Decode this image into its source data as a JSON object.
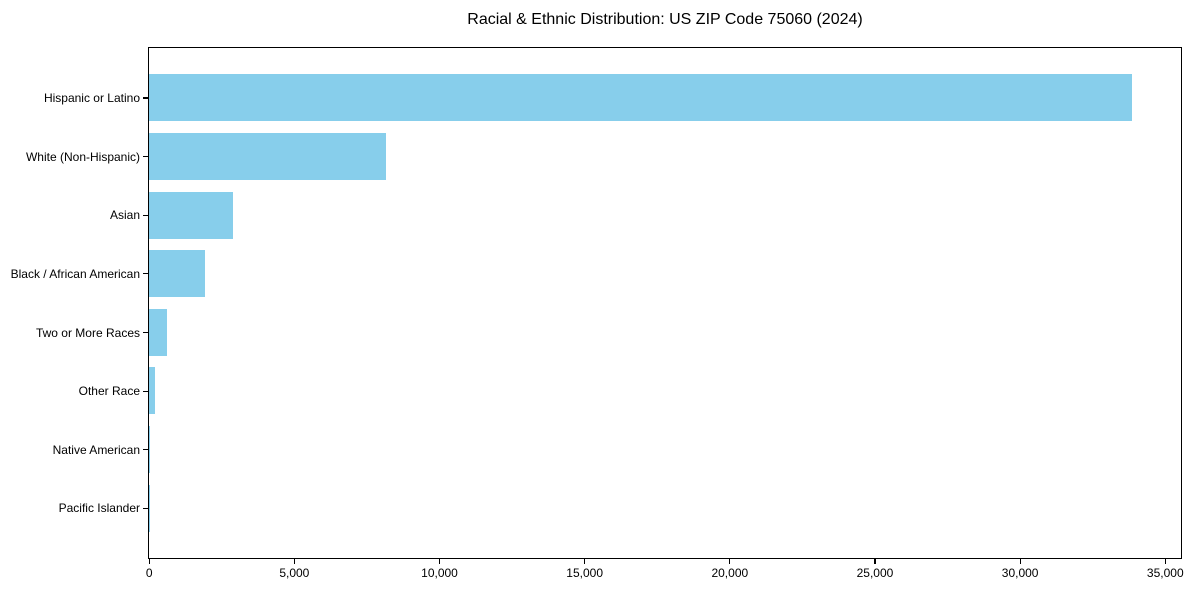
{
  "figure": {
    "title": "Racial & Ethnic Distribution: US ZIP Code 75060 (2024)"
  },
  "chart_data": {
    "type": "bar",
    "orientation": "horizontal",
    "title": "Racial & Ethnic Distribution: US ZIP Code 75060 (2024)",
    "categories": [
      "Hispanic or Latino",
      "White (Non-Hispanic)",
      "Asian",
      "Black / African American",
      "Two or More Races",
      "Other Race",
      "Native American",
      "Pacific Islander"
    ],
    "values": [
      33850,
      8160,
      2910,
      1915,
      610,
      200,
      40,
      15
    ],
    "bar_color": "#87CEEB",
    "xlabel": "",
    "ylabel": "",
    "xlim": [
      0,
      35548
    ],
    "xticks": [
      0,
      5000,
      10000,
      15000,
      20000,
      25000,
      30000,
      35000
    ],
    "xtick_labels": [
      "0",
      "5,000",
      "10,000",
      "15,000",
      "20,000",
      "25,000",
      "30,000",
      "35,000"
    ],
    "grid": false,
    "legend": null,
    "frame": true,
    "background": "#ffffff",
    "text_color": "#000000"
  }
}
